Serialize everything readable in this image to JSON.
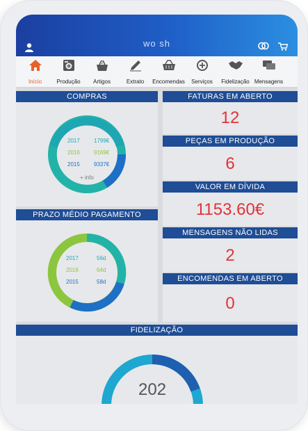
{
  "app": {
    "brand": "wo sh"
  },
  "icons": {
    "user": "user-icon",
    "rings": "rings-icon",
    "cart": "cart-icon"
  },
  "nav": [
    {
      "label": "Início",
      "icon": "home-icon",
      "active": true
    },
    {
      "label": "Produção",
      "icon": "washing-machine-icon",
      "active": false
    },
    {
      "label": "Artigos",
      "icon": "basket-icon",
      "active": false
    },
    {
      "label": "Extrato",
      "icon": "pencil-icon",
      "active": false
    },
    {
      "label": "Encomendas",
      "icon": "cart-icon",
      "active": false
    },
    {
      "label": "Serviços",
      "icon": "services-icon",
      "active": false
    },
    {
      "label": "Fidelização",
      "icon": "handshake-icon",
      "active": false
    },
    {
      "label": "Mensagens",
      "icon": "chat-icon",
      "active": false
    }
  ],
  "compras": {
    "title": "COMPRAS",
    "rows": [
      {
        "year": "2017",
        "value": "1799€"
      },
      {
        "year": "2016",
        "value": "9169€"
      },
      {
        "year": "2015",
        "value": "9337€"
      }
    ],
    "more": "+ info"
  },
  "prazo": {
    "title": "PRAZO MÉDIO PAGAMENTO",
    "rows": [
      {
        "year": "2017",
        "value": "56d"
      },
      {
        "year": "2016",
        "value": "64d"
      },
      {
        "year": "2015",
        "value": "58d"
      }
    ]
  },
  "stats": [
    {
      "title": "FATURAS EM ABERTO",
      "value": "12"
    },
    {
      "title": "PEÇAS EM PRODUÇÃO",
      "value": "6"
    },
    {
      "title": "VALOR EM DÍVIDA",
      "value": "1153.60€"
    },
    {
      "title": "MENSAGENS NÃO LIDAS",
      "value": "2"
    },
    {
      "title": "ENCOMENDAS EM ABERTO",
      "value": "0"
    }
  ],
  "fidelizacao": {
    "title": "FIDELIZAÇÃO",
    "value": "202"
  },
  "colors": {
    "header": "#1f4d96",
    "accent": "#e0333a",
    "active": "#e8602c",
    "teal": "#22b3a8",
    "green": "#8cc63f",
    "blue": "#1e6fc6"
  }
}
